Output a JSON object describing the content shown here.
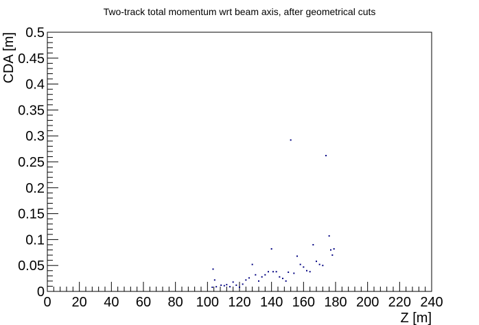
{
  "chart_data": {
    "type": "scatter",
    "title": "Two-track total momentum wrt beam axis, after geometrical cuts",
    "xlabel": "Z [m]",
    "ylabel": "CDA [m]",
    "xlim": [
      0,
      240
    ],
    "ylim": [
      0,
      0.5
    ],
    "x_ticks": [
      "0",
      "20",
      "40",
      "60",
      "80",
      "100",
      "120",
      "140",
      "160",
      "180",
      "200",
      "220",
      "240"
    ],
    "y_ticks": [
      "0",
      "0.05",
      "0.1",
      "0.15",
      "0.2",
      "0.25",
      "0.3",
      "0.35",
      "0.4",
      "0.45",
      "0.5"
    ],
    "grid": false,
    "marker_color": "#000080",
    "points": [
      [
        103.5,
        0.043
      ],
      [
        104.5,
        0.022
      ],
      [
        105.5,
        0.009
      ],
      [
        103,
        0.008
      ],
      [
        108.5,
        0.012
      ],
      [
        110.5,
        0.011
      ],
      [
        112,
        0.013
      ],
      [
        114,
        0.009
      ],
      [
        116,
        0.018
      ],
      [
        118,
        0.012
      ],
      [
        120,
        0.008
      ],
      [
        122,
        0.014
      ],
      [
        124,
        0.022
      ],
      [
        126,
        0.026
      ],
      [
        128,
        0.052
      ],
      [
        130,
        0.032
      ],
      [
        132,
        0.02
      ],
      [
        134,
        0.028
      ],
      [
        136,
        0.032
      ],
      [
        138,
        0.038
      ],
      [
        140,
        0.082
      ],
      [
        141,
        0.038
      ],
      [
        143,
        0.038
      ],
      [
        145,
        0.028
      ],
      [
        147,
        0.025
      ],
      [
        149,
        0.02
      ],
      [
        150.5,
        0.037
      ],
      [
        152,
        0.292
      ],
      [
        154,
        0.035
      ],
      [
        156,
        0.068
      ],
      [
        158,
        0.052
      ],
      [
        160,
        0.047
      ],
      [
        162,
        0.04
      ],
      [
        164,
        0.038
      ],
      [
        166,
        0.09
      ],
      [
        168,
        0.058
      ],
      [
        170,
        0.052
      ],
      [
        172,
        0.05
      ],
      [
        174,
        0.262
      ],
      [
        176,
        0.107
      ],
      [
        177,
        0.08
      ],
      [
        178,
        0.07
      ],
      [
        179,
        0.082
      ]
    ]
  }
}
